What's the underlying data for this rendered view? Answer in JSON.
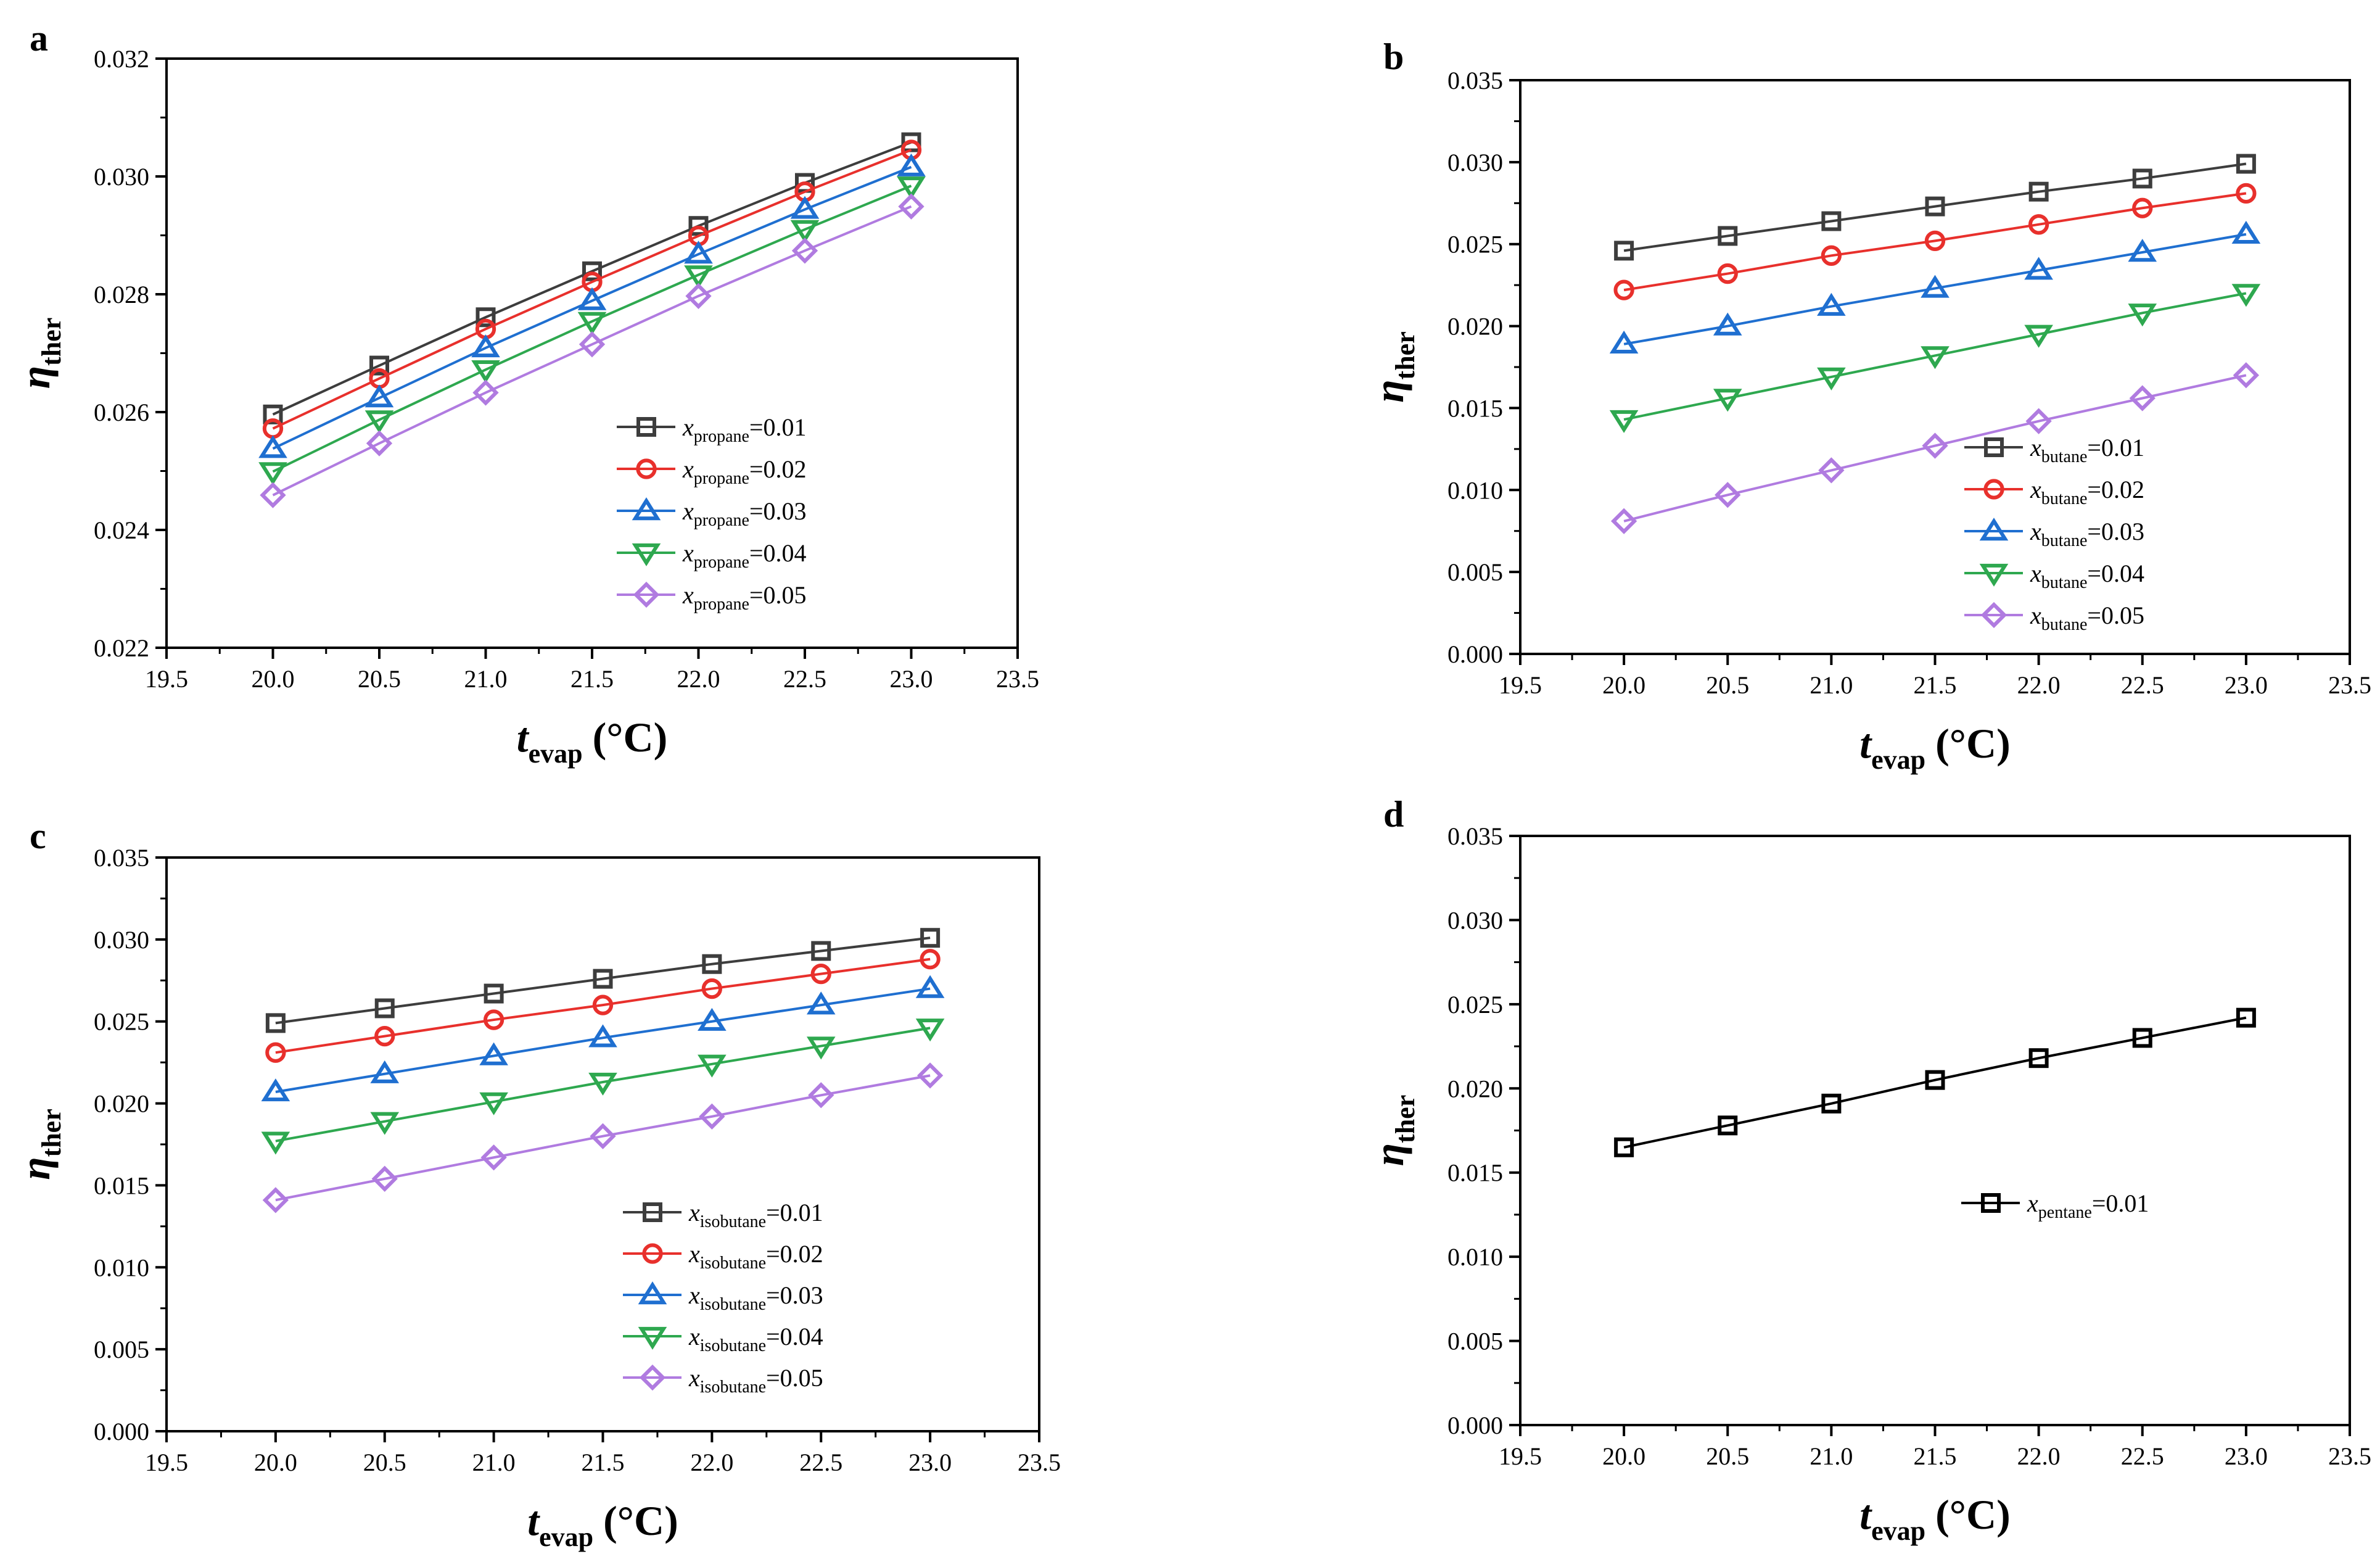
{
  "chart_data": [
    {
      "panel": "a",
      "type": "line",
      "xlabel": {
        "symbol": "t",
        "sub": "evap",
        "unit": "(°C)"
      },
      "ylabel": {
        "symbol": "η",
        "sub": "ther"
      },
      "xlim": [
        19.5,
        23.5
      ],
      "ylim": [
        0.022,
        0.032
      ],
      "xticks": [
        "19.5",
        "20.0",
        "20.5",
        "21.0",
        "21.5",
        "22.0",
        "22.5",
        "23.0",
        "23.5"
      ],
      "yticks": [
        "0.022",
        "0.024",
        "0.026",
        "0.028",
        "0.030",
        "0.032"
      ],
      "x": [
        20.0,
        20.5,
        21.0,
        21.5,
        22.0,
        22.5,
        23.0
      ],
      "legend": "lower-right",
      "series": [
        {
          "var": "x",
          "sub": "propane",
          "value": "=0.01",
          "color": "#3d3d3d",
          "marker": "square",
          "values": [
            0.02596,
            0.02679,
            0.02761,
            0.02839,
            0.02916,
            0.02989,
            0.03058
          ]
        },
        {
          "var": "x",
          "sub": "propane",
          "value": "=0.02",
          "color": "#e8302c",
          "marker": "circle",
          "values": [
            0.02572,
            0.02657,
            0.02741,
            0.02821,
            0.02899,
            0.02974,
            0.03045
          ]
        },
        {
          "var": "x",
          "sub": "propane",
          "value": "=0.03",
          "color": "#1f6fd0",
          "marker": "triangle-up",
          "values": [
            0.02538,
            0.02624,
            0.02709,
            0.02789,
            0.02868,
            0.02944,
            0.03016
          ]
        },
        {
          "var": "x",
          "sub": "propane",
          "value": "=0.04",
          "color": "#2ea84f",
          "marker": "triangle-down",
          "values": [
            0.02499,
            0.02587,
            0.02672,
            0.02754,
            0.02833,
            0.0291,
            0.02984
          ]
        },
        {
          "var": "x",
          "sub": "propane",
          "value": "=0.05",
          "color": "#b07be0",
          "marker": "diamond",
          "values": [
            0.02459,
            0.02547,
            0.02633,
            0.02715,
            0.02797,
            0.02874,
            0.02949
          ]
        }
      ]
    },
    {
      "panel": "b",
      "type": "line",
      "xlabel": {
        "symbol": "t",
        "sub": "evap",
        "unit": "(°C)"
      },
      "ylabel": {
        "symbol": "η",
        "sub": "ther"
      },
      "xlim": [
        19.5,
        23.5
      ],
      "ylim": [
        0.0,
        0.035
      ],
      "xticks": [
        "19.5",
        "20.0",
        "20.5",
        "21.0",
        "21.5",
        "22.0",
        "22.5",
        "23.0",
        "23.5"
      ],
      "yticks": [
        "0.000",
        "0.005",
        "0.010",
        "0.015",
        "0.020",
        "0.025",
        "0.030",
        "0.035"
      ],
      "x": [
        20.0,
        20.5,
        21.0,
        21.5,
        22.0,
        22.5,
        23.0
      ],
      "legend": "lower-right",
      "series": [
        {
          "var": "x",
          "sub": "butane",
          "value": "=0.01",
          "color": "#3d3d3d",
          "marker": "square",
          "values": [
            0.0246,
            0.0255,
            0.0264,
            0.0273,
            0.0282,
            0.029,
            0.0299
          ]
        },
        {
          "var": "x",
          "sub": "butane",
          "value": "=0.02",
          "color": "#e8302c",
          "marker": "circle",
          "values": [
            0.0222,
            0.0232,
            0.0243,
            0.0252,
            0.0262,
            0.0272,
            0.0281
          ]
        },
        {
          "var": "x",
          "sub": "butane",
          "value": "=0.03",
          "color": "#1f6fd0",
          "marker": "triangle-up",
          "values": [
            0.0189,
            0.02,
            0.0212,
            0.0223,
            0.0234,
            0.0245,
            0.0256
          ]
        },
        {
          "var": "x",
          "sub": "butane",
          "value": "=0.04",
          "color": "#2ea84f",
          "marker": "triangle-down",
          "values": [
            0.0143,
            0.0156,
            0.0169,
            0.0182,
            0.0195,
            0.0208,
            0.022
          ]
        },
        {
          "var": "x",
          "sub": "butane",
          "value": "=0.05",
          "color": "#b07be0",
          "marker": "diamond",
          "values": [
            0.0081,
            0.0097,
            0.0112,
            0.0127,
            0.0142,
            0.0156,
            0.017
          ]
        }
      ]
    },
    {
      "panel": "c",
      "type": "line",
      "xlabel": {
        "symbol": "t",
        "sub": "evap",
        "unit": "(°C)"
      },
      "ylabel": {
        "symbol": "η",
        "sub": "ther"
      },
      "xlim": [
        19.5,
        23.5
      ],
      "ylim": [
        0.0,
        0.035
      ],
      "xticks": [
        "19.5",
        "20.0",
        "20.5",
        "21.0",
        "21.5",
        "22.0",
        "22.5",
        "23.0",
        "23.5"
      ],
      "yticks": [
        "0.000",
        "0.005",
        "0.010",
        "0.015",
        "0.020",
        "0.025",
        "0.030",
        "0.035"
      ],
      "x": [
        20.0,
        20.5,
        21.0,
        21.5,
        22.0,
        22.5,
        23.0
      ],
      "legend": "lower-right",
      "series": [
        {
          "var": "x",
          "sub": "isobutane",
          "value": "=0.01",
          "color": "#3d3d3d",
          "marker": "square",
          "values": [
            0.0249,
            0.0258,
            0.0267,
            0.0276,
            0.0285,
            0.0293,
            0.0301
          ]
        },
        {
          "var": "x",
          "sub": "isobutane",
          "value": "=0.02",
          "color": "#e8302c",
          "marker": "circle",
          "values": [
            0.0231,
            0.0241,
            0.0251,
            0.026,
            0.027,
            0.0279,
            0.0288
          ]
        },
        {
          "var": "x",
          "sub": "isobutane",
          "value": "=0.03",
          "color": "#1f6fd0",
          "marker": "triangle-up",
          "values": [
            0.0207,
            0.0218,
            0.0229,
            0.024,
            0.025,
            0.026,
            0.027
          ]
        },
        {
          "var": "x",
          "sub": "isobutane",
          "value": "=0.04",
          "color": "#2ea84f",
          "marker": "triangle-down",
          "values": [
            0.0177,
            0.0189,
            0.0201,
            0.0213,
            0.0224,
            0.0235,
            0.0246
          ]
        },
        {
          "var": "x",
          "sub": "isobutane",
          "value": "=0.05",
          "color": "#b07be0",
          "marker": "diamond",
          "values": [
            0.0141,
            0.0154,
            0.0167,
            0.018,
            0.0192,
            0.0205,
            0.0217
          ]
        }
      ]
    },
    {
      "panel": "d",
      "type": "line",
      "xlabel": {
        "symbol": "t",
        "sub": "evap",
        "unit": "(°C)"
      },
      "ylabel": {
        "symbol": "η",
        "sub": "ther"
      },
      "xlim": [
        19.5,
        23.5
      ],
      "ylim": [
        0.0,
        0.035
      ],
      "xticks": [
        "19.5",
        "20.0",
        "20.5",
        "21.0",
        "21.5",
        "22.0",
        "22.5",
        "23.0",
        "23.5"
      ],
      "yticks": [
        "0.000",
        "0.005",
        "0.010",
        "0.015",
        "0.020",
        "0.025",
        "0.030",
        "0.035"
      ],
      "x": [
        20.0,
        20.5,
        21.0,
        21.5,
        22.0,
        22.5,
        23.0
      ],
      "legend": "center-right",
      "series": [
        {
          "var": "x",
          "sub": "pentane",
          "value": "=0.01",
          "color": "#000000",
          "marker": "square",
          "values": [
            0.0165,
            0.0178,
            0.0191,
            0.0205,
            0.0218,
            0.023,
            0.0242
          ]
        }
      ]
    }
  ]
}
